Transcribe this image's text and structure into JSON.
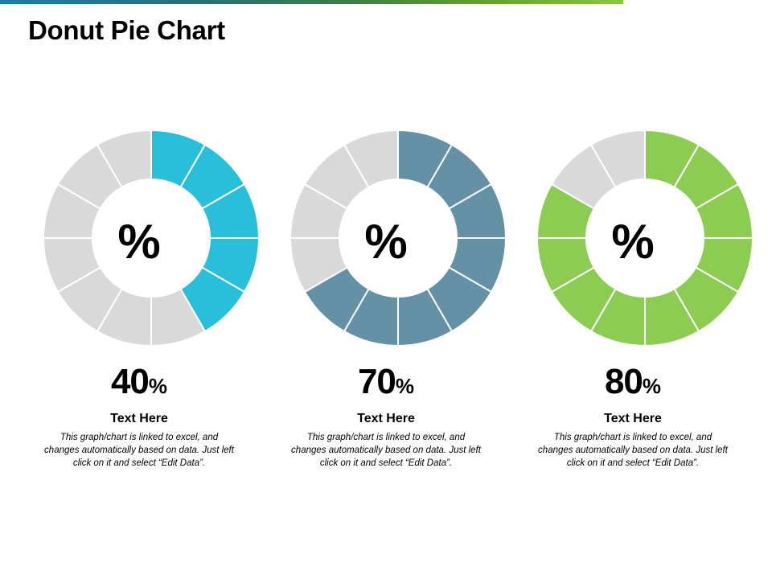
{
  "title": "Donut Pie Chart",
  "chart_data": [
    {
      "type": "pie",
      "style": "donut",
      "segments": 12,
      "value": 40,
      "center_label": "%",
      "value_text": "40",
      "unit_text": "%",
      "heading": "Text Here",
      "description": "This graph/chart is linked to excel, and changes automatically based on data. Just left click on it and select “Edit Data”.",
      "fill_color": "#29BFDA",
      "empty_color": "#D9D9D9"
    },
    {
      "type": "pie",
      "style": "donut",
      "segments": 12,
      "value": 70,
      "center_label": "%",
      "value_text": "70",
      "unit_text": "%",
      "heading": "Text Here",
      "description": "This graph/chart is linked to excel, and changes automatically based on data. Just left click on it and select “Edit Data”.",
      "fill_color": "#6491A6",
      "empty_color": "#D9D9D9"
    },
    {
      "type": "pie",
      "style": "donut",
      "segments": 12,
      "value": 80,
      "center_label": "%",
      "value_text": "80",
      "unit_text": "%",
      "heading": "Text Here",
      "description": "This graph/chart is linked to excel, and changes automatically based on data. Just left click on it and select “Edit Data”.",
      "fill_color": "#8DCC52",
      "empty_color": "#D9D9D9"
    }
  ]
}
